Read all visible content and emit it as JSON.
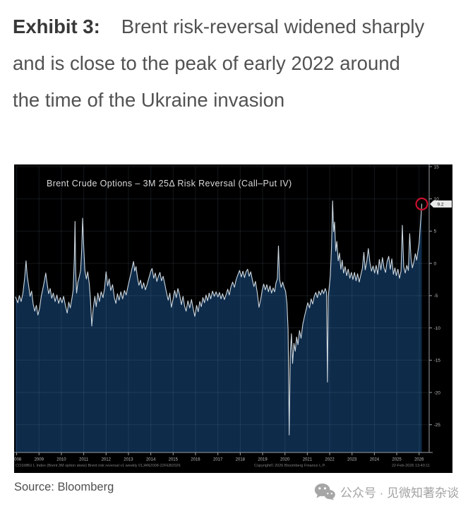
{
  "heading": {
    "exhibit_label": "Exhibit 3:",
    "text": "Brent risk-reversal widened sharply and is close to the peak of early 2022 around the time of the Ukraine invasion"
  },
  "source_line": "Source: Bloomberg",
  "watermark": {
    "icon": "wechat-icon",
    "text": "公众号 · 见微知著杂谈"
  },
  "chart_data": {
    "type": "area",
    "title": "Brent Crude Options – 3M 25Δ Risk Reversal (Call–Put IV)",
    "xlabel": "",
    "ylabel": "",
    "x_tick_years": [
      "2008",
      "2009",
      "2010",
      "2011",
      "2012",
      "2013",
      "2014",
      "2015",
      "2016",
      "2017",
      "2018",
      "2019",
      "2020",
      "2021",
      "2022",
      "2023",
      "2024",
      "2025",
      "2026"
    ],
    "y_ticks": [
      15,
      10,
      5,
      0,
      -5,
      -10,
      -15,
      -20,
      -25
    ],
    "xlim": [
      2007.95,
      2026.45
    ],
    "ylim": [
      -29.3,
      15
    ],
    "grid": true,
    "legend_position": "none",
    "last_point": {
      "x": 2026.12,
      "value": 9.2,
      "value_label": "9.2",
      "annotation": "red-circle"
    },
    "footer": {
      "left": "CO1MBU L Index (Brent 3M option skew) Brent risk reversal v1 weekly 01JAN2008-22FEB2026",
      "center": "Copyright© 2026 Bloomberg Finance L.P.",
      "right": "22-Feb-2026 13:40:11"
    },
    "colors": {
      "panel_bg": "#000000",
      "area_fill": "#0e2b4a",
      "line": "#cdd8e0",
      "grid": "rgba(150,180,210,0.13)",
      "axis": "#9aa0a6",
      "tick_text": "#bdbdbd",
      "annotation_red": "#c8102e",
      "value_box_bg": "#e9e9e9",
      "value_box_text": "#111111"
    },
    "series": [
      {
        "name": "3M 25Δ Risk Reversal (Call–Put IV)",
        "points": [
          [
            2007.95,
            -5.2
          ],
          [
            2008.05,
            -6.1
          ],
          [
            2008.12,
            -5.0
          ],
          [
            2008.2,
            -5.9
          ],
          [
            2008.28,
            -4.6
          ],
          [
            2008.36,
            -2.2
          ],
          [
            2008.42,
            0.4
          ],
          [
            2008.47,
            -1.9
          ],
          [
            2008.53,
            -3.3
          ],
          [
            2008.6,
            -5.1
          ],
          [
            2008.67,
            -4.3
          ],
          [
            2008.74,
            -6.3
          ],
          [
            2008.81,
            -7.4
          ],
          [
            2008.88,
            -6.5
          ],
          [
            2008.95,
            -8.0
          ],
          [
            2009.03,
            -6.9
          ],
          [
            2009.1,
            -5.1
          ],
          [
            2009.17,
            -4.0
          ],
          [
            2009.24,
            -2.7
          ],
          [
            2009.3,
            -1.5
          ],
          [
            2009.36,
            -3.1
          ],
          [
            2009.43,
            -4.7
          ],
          [
            2009.5,
            -3.9
          ],
          [
            2009.57,
            -5.4
          ],
          [
            2009.64,
            -4.6
          ],
          [
            2009.72,
            -5.9
          ],
          [
            2009.8,
            -4.9
          ],
          [
            2009.88,
            -6.2
          ],
          [
            2009.95,
            -5.3
          ],
          [
            2010.03,
            -6.1
          ],
          [
            2010.1,
            -5.1
          ],
          [
            2010.18,
            -6.5
          ],
          [
            2010.26,
            -7.7
          ],
          [
            2010.33,
            -6.0
          ],
          [
            2010.4,
            -6.9
          ],
          [
            2010.47,
            -5.5
          ],
          [
            2010.53,
            -4.1
          ],
          [
            2010.58,
            0.8
          ],
          [
            2010.61,
            6.5
          ],
          [
            2010.64,
            -1.2
          ],
          [
            2010.68,
            -4.6
          ],
          [
            2010.74,
            -2.9
          ],
          [
            2010.8,
            -2.1
          ],
          [
            2010.86,
            -1.1
          ],
          [
            2010.91,
            2.2
          ],
          [
            2010.95,
            7.0
          ],
          [
            2011.0,
            2.6
          ],
          [
            2011.05,
            -1.1
          ],
          [
            2011.12,
            -2.4
          ],
          [
            2011.18,
            -1.3
          ],
          [
            2011.25,
            -3.2
          ],
          [
            2011.3,
            -5.6
          ],
          [
            2011.36,
            -9.7
          ],
          [
            2011.43,
            -6.9
          ],
          [
            2011.5,
            -5.1
          ],
          [
            2011.56,
            -6.7
          ],
          [
            2011.63,
            -4.6
          ],
          [
            2011.7,
            -5.9
          ],
          [
            2011.78,
            -4.4
          ],
          [
            2011.86,
            -5.3
          ],
          [
            2011.93,
            -3.9
          ],
          [
            2012.0,
            -1.3
          ],
          [
            2012.07,
            -3.5
          ],
          [
            2012.14,
            -2.4
          ],
          [
            2012.21,
            -4.2
          ],
          [
            2012.29,
            -3.3
          ],
          [
            2012.37,
            -5.3
          ],
          [
            2012.44,
            -6.2
          ],
          [
            2012.51,
            -4.7
          ],
          [
            2012.58,
            -5.7
          ],
          [
            2012.66,
            -4.4
          ],
          [
            2012.74,
            -5.5
          ],
          [
            2012.82,
            -4.2
          ],
          [
            2012.9,
            -4.9
          ],
          [
            2012.97,
            -3.7
          ],
          [
            2013.05,
            -2.5
          ],
          [
            2013.12,
            -1.4
          ],
          [
            2013.18,
            -0.4
          ],
          [
            2013.23,
            0.3
          ],
          [
            2013.28,
            -1.2
          ],
          [
            2013.34,
            -0.5
          ],
          [
            2013.4,
            -2.1
          ],
          [
            2013.47,
            -3.4
          ],
          [
            2013.54,
            -2.6
          ],
          [
            2013.61,
            -3.9
          ],
          [
            2013.68,
            -3.0
          ],
          [
            2013.76,
            -4.1
          ],
          [
            2013.84,
            -3.2
          ],
          [
            2013.92,
            -2.2
          ],
          [
            2014.0,
            -1.2
          ],
          [
            2014.06,
            -0.8
          ],
          [
            2014.13,
            -2.3
          ],
          [
            2014.2,
            -1.5
          ],
          [
            2014.27,
            -2.8
          ],
          [
            2014.34,
            -2.0
          ],
          [
            2014.41,
            -1.4
          ],
          [
            2014.48,
            -2.7
          ],
          [
            2014.55,
            -2.0
          ],
          [
            2014.62,
            -3.1
          ],
          [
            2014.7,
            -4.5
          ],
          [
            2014.78,
            -5.7
          ],
          [
            2014.85,
            -4.6
          ],
          [
            2014.92,
            -6.8
          ],
          [
            2015.0,
            -5.5
          ],
          [
            2015.07,
            -4.2
          ],
          [
            2015.14,
            -5.3
          ],
          [
            2015.21,
            -3.9
          ],
          [
            2015.29,
            -4.9
          ],
          [
            2015.37,
            -6.4
          ],
          [
            2015.44,
            -5.1
          ],
          [
            2015.51,
            -6.6
          ],
          [
            2015.58,
            -7.4
          ],
          [
            2015.66,
            -5.8
          ],
          [
            2015.74,
            -6.9
          ],
          [
            2015.82,
            -5.6
          ],
          [
            2015.9,
            -7.1
          ],
          [
            2015.97,
            -8.2
          ],
          [
            2016.05,
            -6.5
          ],
          [
            2016.12,
            -7.5
          ],
          [
            2016.19,
            -5.9
          ],
          [
            2016.26,
            -6.7
          ],
          [
            2016.33,
            -5.3
          ],
          [
            2016.4,
            -6.1
          ],
          [
            2016.47,
            -4.9
          ],
          [
            2016.54,
            -5.8
          ],
          [
            2016.61,
            -4.6
          ],
          [
            2016.68,
            -5.5
          ],
          [
            2016.76,
            -4.3
          ],
          [
            2016.84,
            -5.1
          ],
          [
            2016.92,
            -4.4
          ],
          [
            2017.0,
            -5.2
          ],
          [
            2017.07,
            -4.5
          ],
          [
            2017.14,
            -5.5
          ],
          [
            2017.21,
            -4.7
          ],
          [
            2017.29,
            -5.6
          ],
          [
            2017.37,
            -4.8
          ],
          [
            2017.44,
            -4.0
          ],
          [
            2017.51,
            -4.9
          ],
          [
            2017.58,
            -3.7
          ],
          [
            2017.66,
            -2.9
          ],
          [
            2017.74,
            -3.7
          ],
          [
            2017.82,
            -2.5
          ],
          [
            2017.9,
            -1.7
          ],
          [
            2017.97,
            -1.1
          ],
          [
            2018.05,
            -2.1
          ],
          [
            2018.12,
            -1.2
          ],
          [
            2018.19,
            -2.2
          ],
          [
            2018.26,
            -1.3
          ],
          [
            2018.33,
            -0.9
          ],
          [
            2018.4,
            -2.0
          ],
          [
            2018.47,
            -1.3
          ],
          [
            2018.54,
            -2.5
          ],
          [
            2018.61,
            -3.6
          ],
          [
            2018.68,
            -2.8
          ],
          [
            2018.76,
            -4.5
          ],
          [
            2018.84,
            -6.8
          ],
          [
            2018.92,
            -5.5
          ],
          [
            2018.98,
            -4.2
          ],
          [
            2019.05,
            -3.2
          ],
          [
            2019.12,
            -4.1
          ],
          [
            2019.19,
            -3.3
          ],
          [
            2019.26,
            -4.4
          ],
          [
            2019.33,
            -3.5
          ],
          [
            2019.4,
            -4.6
          ],
          [
            2019.47,
            -3.8
          ],
          [
            2019.54,
            -4.4
          ],
          [
            2019.6,
            -3.0
          ],
          [
            2019.66,
            -2.4
          ],
          [
            2019.71,
            2.7
          ],
          [
            2019.76,
            -2.5
          ],
          [
            2019.83,
            -3.7
          ],
          [
            2019.9,
            -2.9
          ],
          [
            2019.96,
            -3.7
          ],
          [
            2020.03,
            -4.3
          ],
          [
            2020.09,
            -6.2
          ],
          [
            2020.14,
            -10.2
          ],
          [
            2020.19,
            -26.6
          ],
          [
            2020.24,
            -13.8
          ],
          [
            2020.29,
            -10.9
          ],
          [
            2020.34,
            -15.5
          ],
          [
            2020.4,
            -12.4
          ],
          [
            2020.46,
            -13.6
          ],
          [
            2020.52,
            -11.4
          ],
          [
            2020.58,
            -12.6
          ],
          [
            2020.65,
            -10.4
          ],
          [
            2020.72,
            -11.6
          ],
          [
            2020.8,
            -9.4
          ],
          [
            2020.88,
            -8.1
          ],
          [
            2020.95,
            -7.1
          ],
          [
            2021.02,
            -6.1
          ],
          [
            2021.1,
            -6.9
          ],
          [
            2021.17,
            -5.5
          ],
          [
            2021.24,
            -6.3
          ],
          [
            2021.31,
            -5.1
          ],
          [
            2021.38,
            -4.5
          ],
          [
            2021.45,
            -5.3
          ],
          [
            2021.52,
            -4.3
          ],
          [
            2021.59,
            -4.9
          ],
          [
            2021.66,
            -4.1
          ],
          [
            2021.73,
            -4.7
          ],
          [
            2021.8,
            -3.9
          ],
          [
            2021.86,
            -4.5
          ],
          [
            2021.9,
            -18.4
          ],
          [
            2021.94,
            -5.1
          ],
          [
            2021.98,
            -3.7
          ],
          [
            2022.03,
            -1.9
          ],
          [
            2022.08,
            2.4
          ],
          [
            2022.13,
            9.7
          ],
          [
            2022.18,
            4.9
          ],
          [
            2022.22,
            6.4
          ],
          [
            2022.27,
            1.9
          ],
          [
            2022.32,
            3.4
          ],
          [
            2022.38,
            0.4
          ],
          [
            2022.44,
            1.6
          ],
          [
            2022.5,
            -0.9
          ],
          [
            2022.56,
            0.5
          ],
          [
            2022.62,
            -1.5
          ],
          [
            2022.69,
            -0.5
          ],
          [
            2022.76,
            -1.9
          ],
          [
            2022.83,
            -0.9
          ],
          [
            2022.9,
            -2.3
          ],
          [
            2022.97,
            -1.4
          ],
          [
            2023.04,
            -2.5
          ],
          [
            2023.11,
            -1.4
          ],
          [
            2023.18,
            -2.7
          ],
          [
            2023.25,
            -1.6
          ],
          [
            2023.32,
            -2.9
          ],
          [
            2023.39,
            -1.8
          ],
          [
            2023.46,
            -0.8
          ],
          [
            2023.53,
            1.7
          ],
          [
            2023.59,
            -1.0
          ],
          [
            2023.66,
            0.3
          ],
          [
            2023.73,
            2.3
          ],
          [
            2023.8,
            0.1
          ],
          [
            2023.87,
            -1.2
          ],
          [
            2023.94,
            -0.4
          ],
          [
            2024.01,
            -1.5
          ],
          [
            2024.08,
            -0.3
          ],
          [
            2024.15,
            -1.7
          ],
          [
            2024.22,
            0.6
          ],
          [
            2024.29,
            -1.0
          ],
          [
            2024.36,
            0.9
          ],
          [
            2024.43,
            -0.7
          ],
          [
            2024.5,
            -1.4
          ],
          [
            2024.57,
            0.3
          ],
          [
            2024.64,
            1.1
          ],
          [
            2024.71,
            -0.9
          ],
          [
            2024.78,
            0.7
          ],
          [
            2024.85,
            -1.7
          ],
          [
            2024.92,
            -0.7
          ],
          [
            2024.98,
            -1.9
          ],
          [
            2025.05,
            -0.9
          ],
          [
            2025.12,
            -2.3
          ],
          [
            2025.19,
            -1.2
          ],
          [
            2025.25,
            5.9
          ],
          [
            2025.31,
            -0.5
          ],
          [
            2025.38,
            -1.5
          ],
          [
            2025.45,
            -0.3
          ],
          [
            2025.52,
            -1.1
          ],
          [
            2025.58,
            4.6
          ],
          [
            2025.64,
            0.7
          ],
          [
            2025.7,
            -0.7
          ],
          [
            2025.77,
            0.3
          ],
          [
            2025.83,
            1.5
          ],
          [
            2025.89,
            0.5
          ],
          [
            2025.94,
            1.7
          ],
          [
            2026.0,
            3.1
          ],
          [
            2026.05,
            5.6
          ],
          [
            2026.09,
            7.6
          ],
          [
            2026.12,
            9.2
          ]
        ]
      }
    ]
  }
}
